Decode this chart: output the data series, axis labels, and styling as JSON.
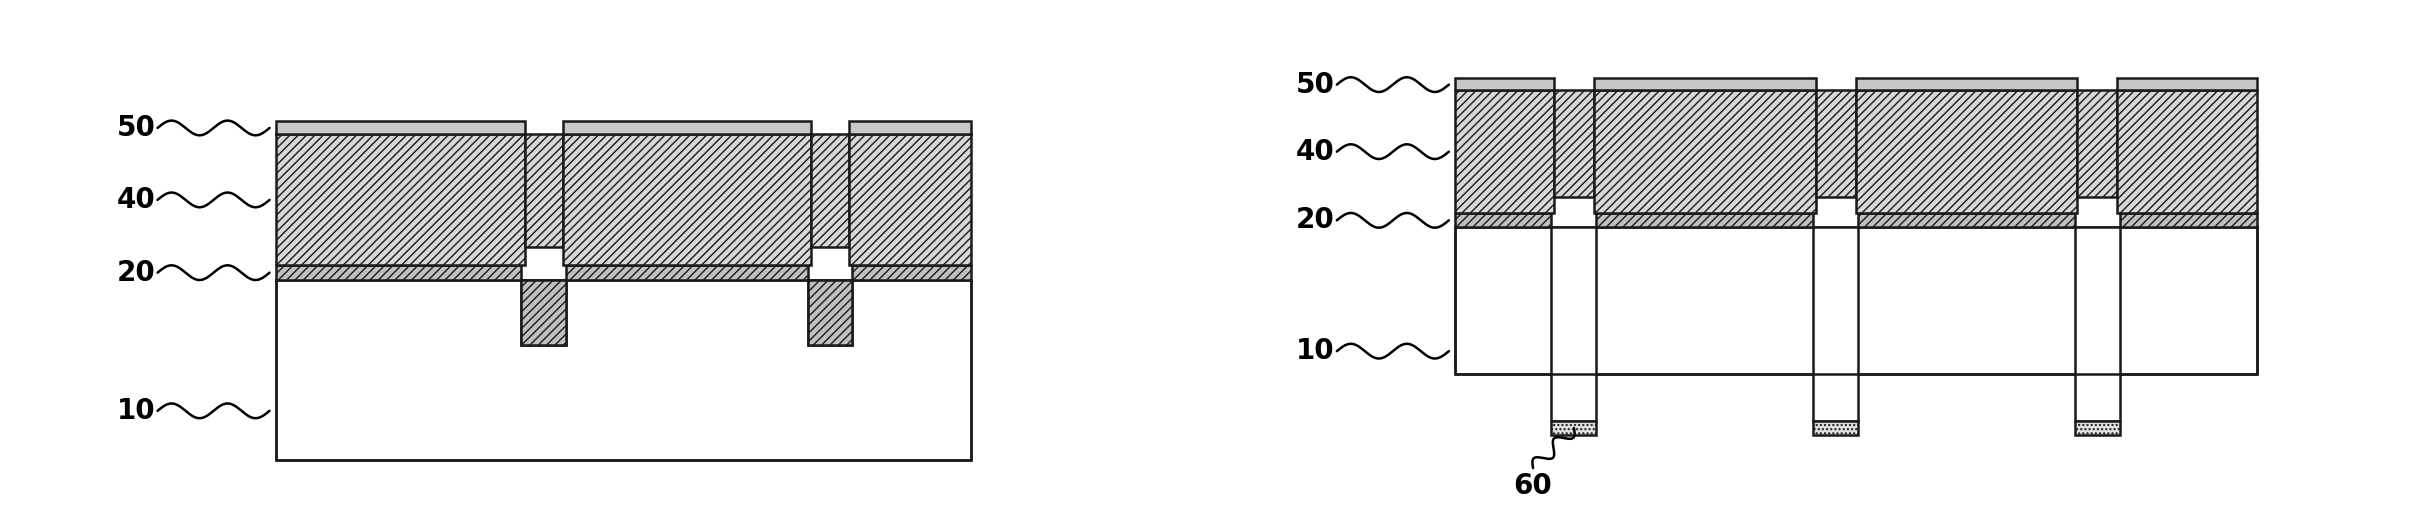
{
  "fig_width": 24.09,
  "fig_height": 5.11,
  "dpi": 100,
  "bg_color": "#ffffff",
  "ec": "#1a1a1a",
  "lw": 1.8,
  "fc_40": "#d8d8d8",
  "fc_20": "#c0c0c0",
  "fc_50": "#c8c8c8",
  "fc_sub": "#ffffff",
  "fc_60": "#e0e0e0",
  "label_fs": 20,
  "hatch_40": "////",
  "hatch_20": "////"
}
